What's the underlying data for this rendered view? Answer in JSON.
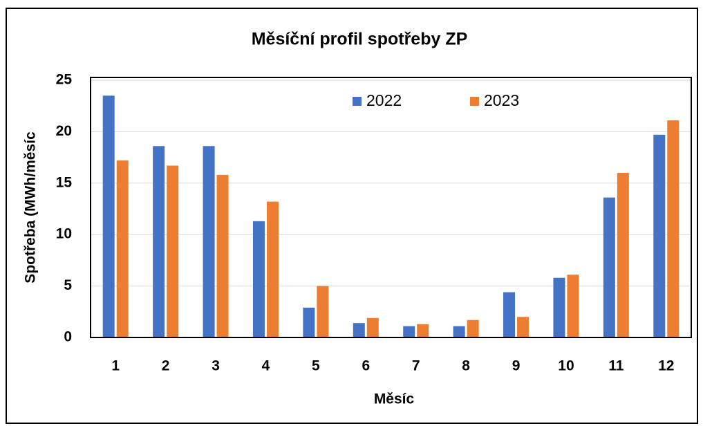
{
  "chart_data": {
    "type": "bar",
    "title": "Měsíční profil spotřeby ZP",
    "x_label": "Měsíc",
    "y_label": "Spotřeba (MWh/měsíc",
    "categories": [
      "1",
      "2",
      "3",
      "4",
      "5",
      "6",
      "7",
      "8",
      "9",
      "10",
      "11",
      "12"
    ],
    "series": [
      {
        "name": "2022",
        "color": "#4472c4",
        "values": [
          23.5,
          18.6,
          18.6,
          11.3,
          2.9,
          1.4,
          1.1,
          1.1,
          4.4,
          5.8,
          13.6,
          19.7
        ]
      },
      {
        "name": "2023",
        "color": "#ed7d31",
        "values": [
          17.2,
          16.7,
          15.8,
          13.2,
          5.0,
          1.9,
          1.3,
          1.7,
          2.0,
          6.1,
          16.0,
          21.1
        ]
      }
    ],
    "ylim": [
      0,
      25
    ],
    "yticks": [
      0,
      5,
      10,
      15,
      20,
      25
    ],
    "grid": true,
    "legend": "top"
  }
}
